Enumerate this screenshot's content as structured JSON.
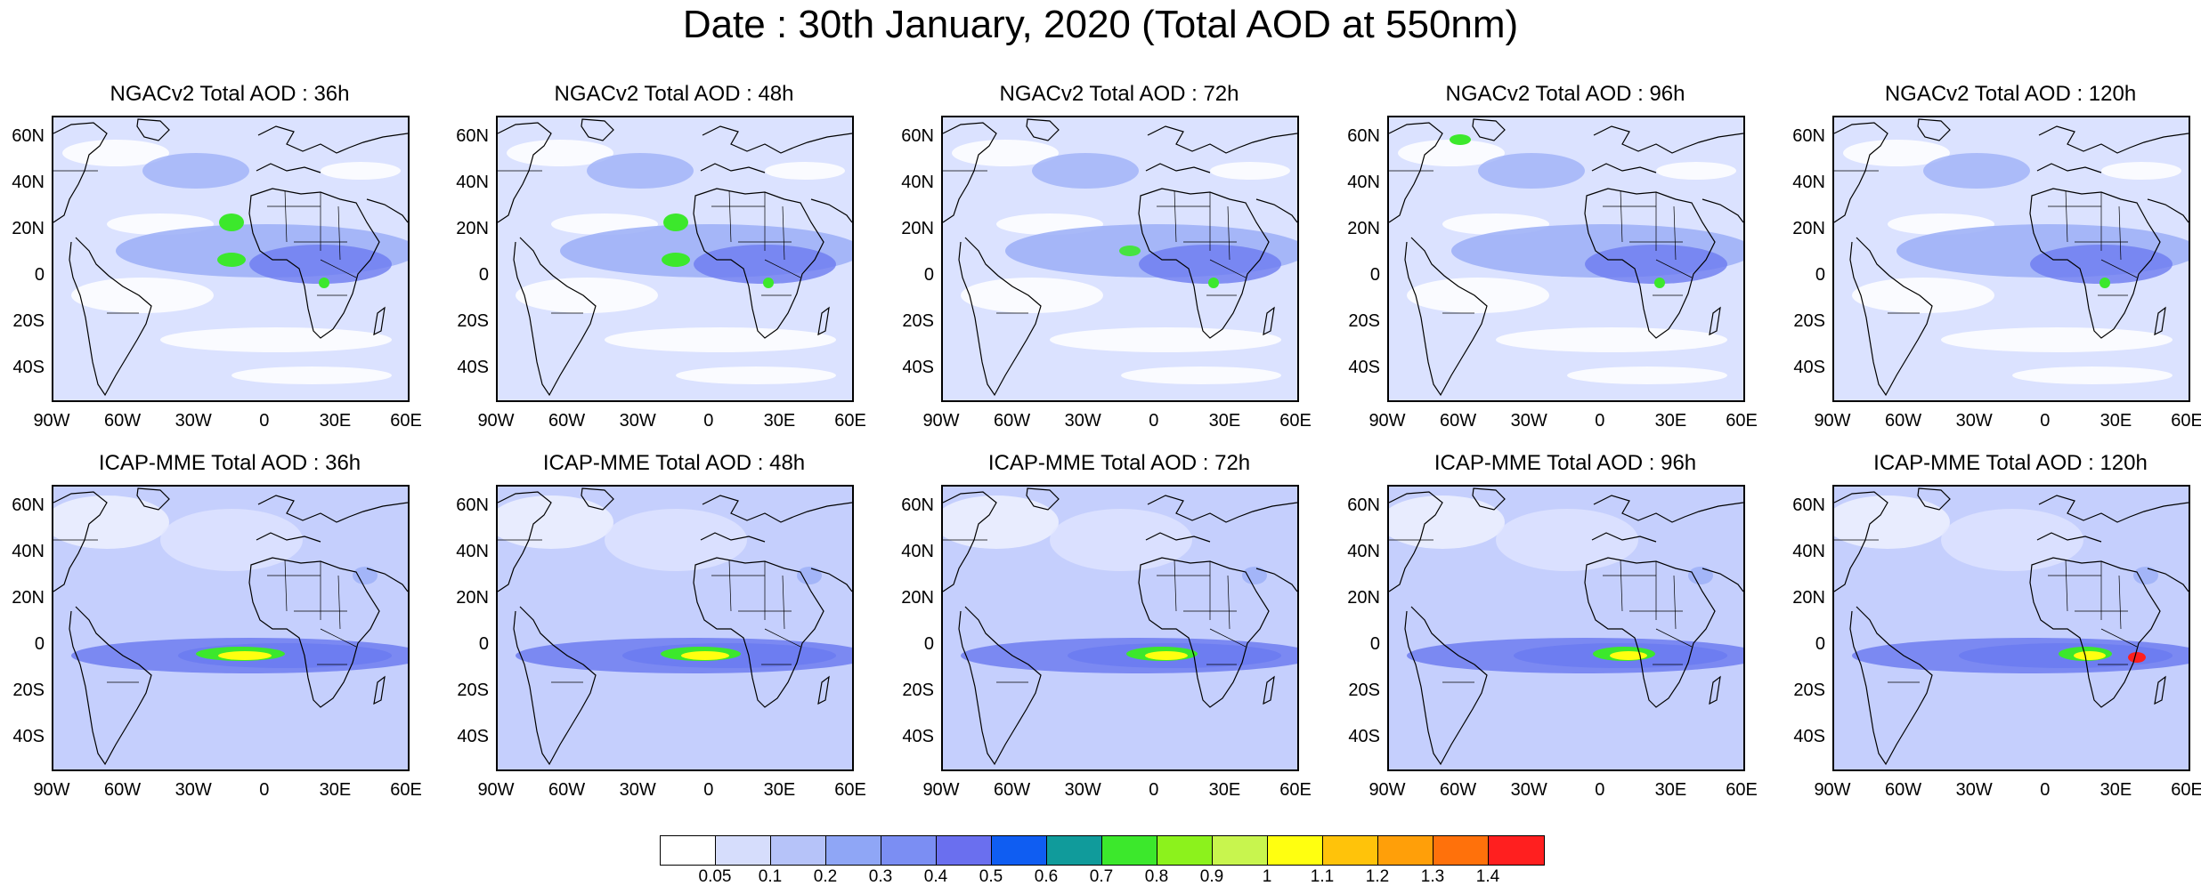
{
  "title": "Date : 30th January, 2020 (Total AOD at 550nm)",
  "panels": [
    {
      "title": "NGACv2 Total AOD : 36h",
      "model": "NGACv2"
    },
    {
      "title": "NGACv2 Total AOD : 48h",
      "model": "NGACv2"
    },
    {
      "title": "NGACv2 Total AOD : 72h",
      "model": "NGACv2"
    },
    {
      "title": "NGACv2 Total AOD : 96h",
      "model": "NGACv2"
    },
    {
      "title": "NGACv2 Total AOD : 120h",
      "model": "NGACv2"
    },
    {
      "title": "ICAP-MME Total AOD : 36h",
      "model": "ICAP-MME"
    },
    {
      "title": "ICAP-MME Total AOD : 48h",
      "model": "ICAP-MME"
    },
    {
      "title": "ICAP-MME Total AOD : 72h",
      "model": "ICAP-MME"
    },
    {
      "title": "ICAP-MME Total AOD : 96h",
      "model": "ICAP-MME"
    },
    {
      "title": "ICAP-MME Total AOD : 120h",
      "model": "ICAP-MME"
    }
  ],
  "lat_labels": [
    "60N",
    "40N",
    "20N",
    "0",
    "20S",
    "40S"
  ],
  "lon_labels": [
    "90W",
    "60W",
    "30W",
    "0",
    "30E",
    "60E"
  ],
  "colorbar": {
    "labels": [
      "0.05",
      "0.1",
      "0.2",
      "0.3",
      "0.4",
      "0.5",
      "0.6",
      "0.7",
      "0.8",
      "0.9",
      "1",
      "1.1",
      "1.2",
      "1.3",
      "1.4"
    ],
    "colors": [
      "#ffffff",
      "#d6ddfc",
      "#b6c3f9",
      "#8fa6f6",
      "#7b8ef3",
      "#6a6fef",
      "#0f5df2",
      "#109b9b",
      "#3ce82c",
      "#8cf21c",
      "#c8f54e",
      "#ffff10",
      "#ffc30a",
      "#ff9f09",
      "#ff710b",
      "#ff1f1f"
    ]
  },
  "map_colors": {
    "ocean_ngac": "#dbe2ff",
    "ocean_icap": "#c5cffd",
    "low": "#ffffff",
    "medium": "#9fb1f7",
    "high": "#6d7cf0",
    "dust_green": "#3ce82c",
    "dust_yellow": "#ffff10",
    "dust_red": "#ff1f1f",
    "coast": "#000000"
  }
}
